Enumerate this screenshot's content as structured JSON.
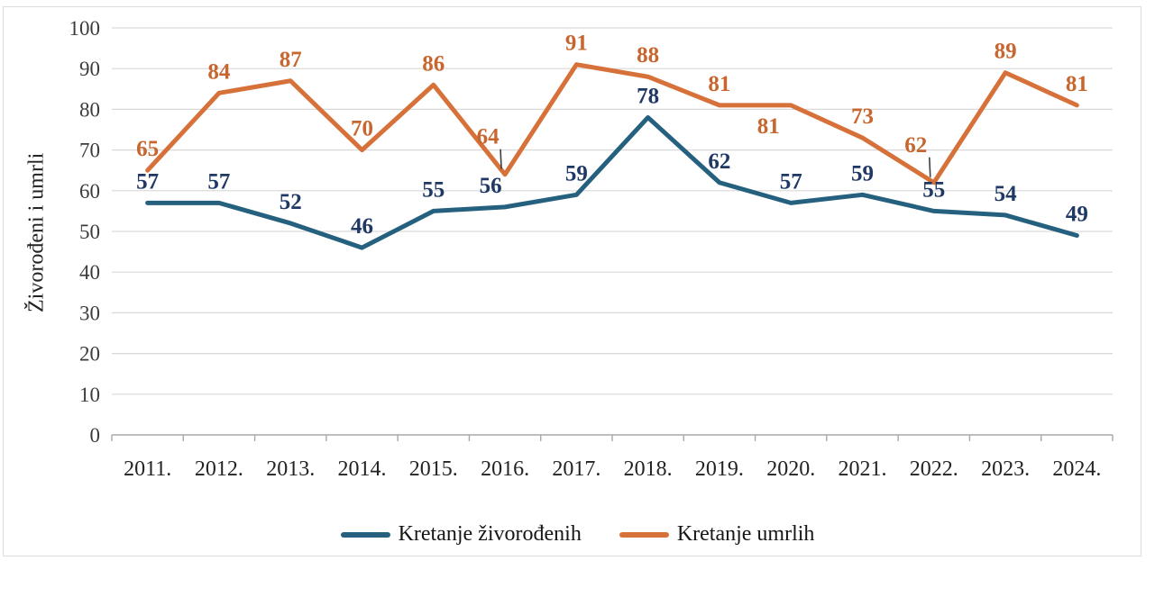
{
  "chart_data": {
    "type": "line",
    "title": "",
    "ylabel": "Živorođeni i umrli",
    "xlabel": "",
    "categories": [
      "2011.",
      "2012.",
      "2013.",
      "2014.",
      "2015.",
      "2016.",
      "2017.",
      "2018.",
      "2019.",
      "2020.",
      "2021.",
      "2022.",
      "2023.",
      "2024."
    ],
    "ylim": [
      0,
      100
    ],
    "ytick_step": 10,
    "grid": "horizontal",
    "legend_position": "bottom",
    "colors": {
      "gridline": "#d9d9d9",
      "axis": "#a9a9a9",
      "leader_line": "#3f3f3f"
    },
    "series": [
      {
        "name": "Kretanje živorođenih",
        "color": "#25617f",
        "label_color": "#1f3864",
        "values": [
          57,
          57,
          52,
          46,
          55,
          56,
          59,
          78,
          62,
          57,
          59,
          55,
          54,
          49
        ],
        "label_placement": {
          "5": {
            "dx": -16
          }
        }
      },
      {
        "name": "Kretanje umrlih",
        "color": "#d7713a",
        "label_color": "#c8662f",
        "values": [
          65,
          84,
          87,
          70,
          86,
          64,
          91,
          88,
          81,
          81,
          73,
          62,
          89,
          81
        ],
        "label_placement": {
          "5": {
            "mode": "above-leader",
            "dx": -19
          },
          "9": {
            "mode": "below",
            "dx": -25
          },
          "11": {
            "mode": "above-leader",
            "dx": -20
          }
        }
      }
    ]
  }
}
